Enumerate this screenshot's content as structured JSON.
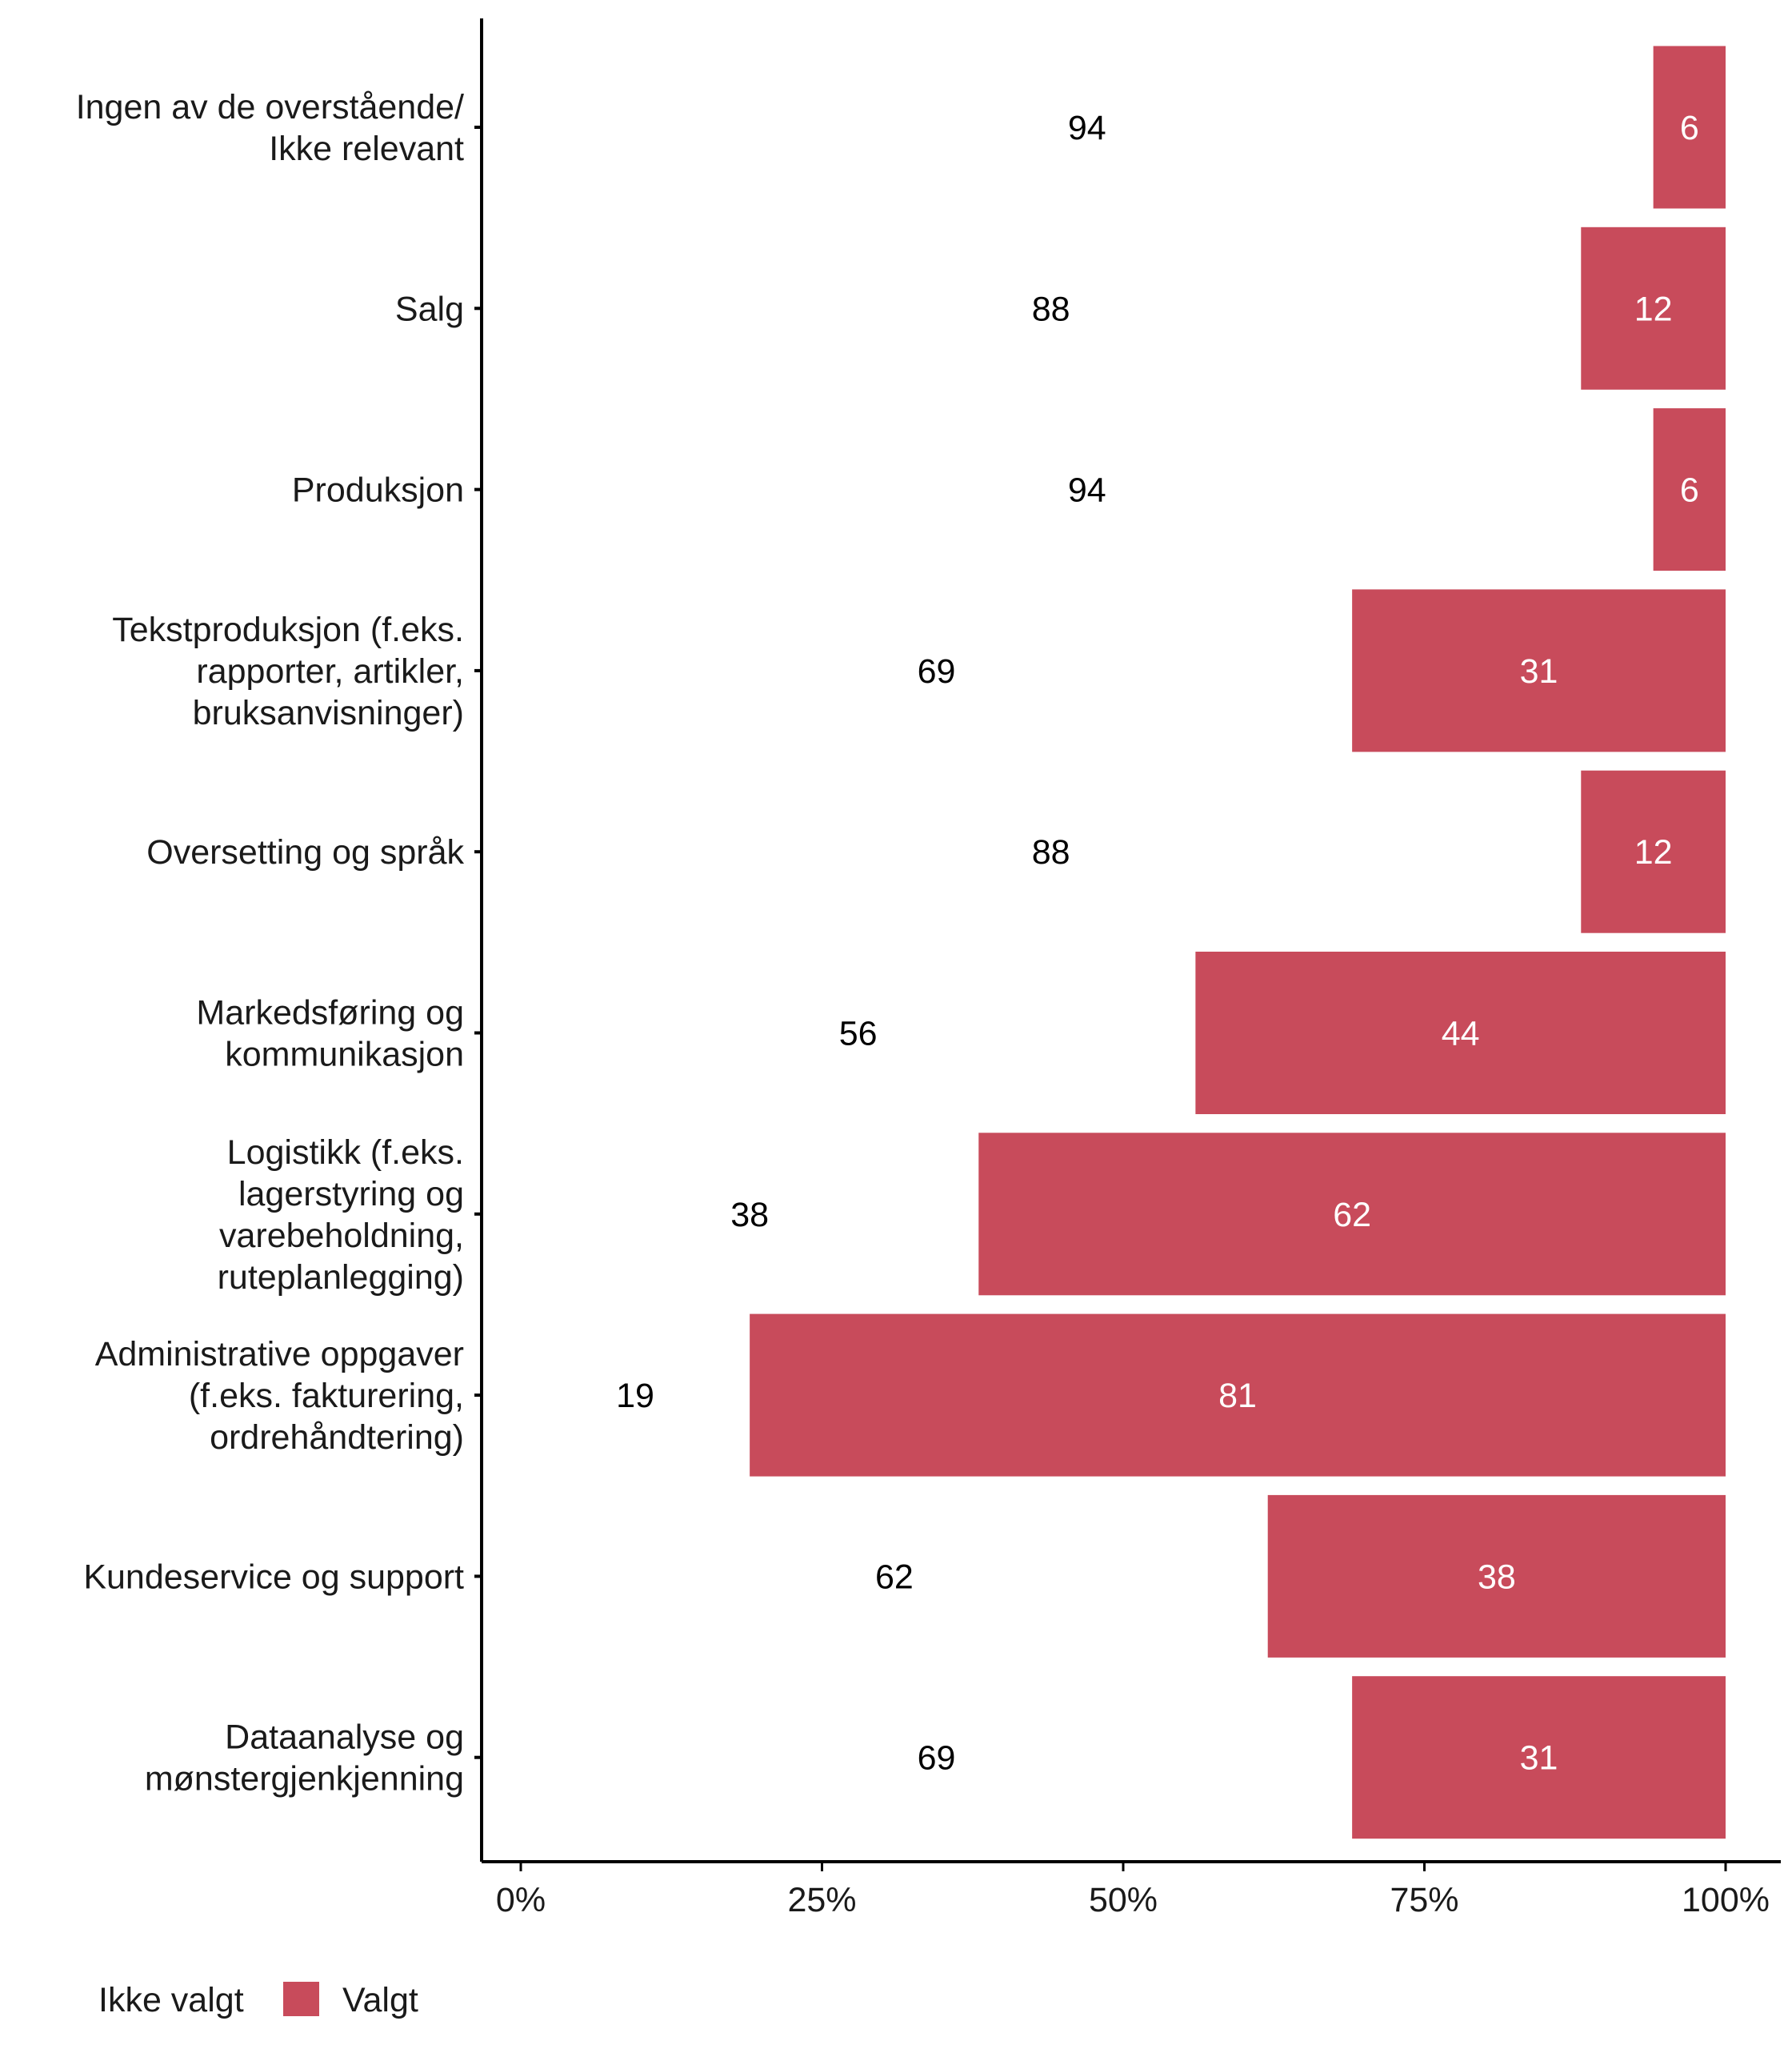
{
  "chart_data": {
    "type": "bar",
    "orientation": "horizontal",
    "stacked": true,
    "categories": [
      [
        "Ingen av de overstående/",
        "Ikke relevant"
      ],
      [
        "Salg"
      ],
      [
        "Produksjon"
      ],
      [
        "Tekstproduksjon (f.eks.",
        "rapporter, artikler,",
        "bruksanvisninger)"
      ],
      [
        "Oversetting og språk"
      ],
      [
        "Markedsføring og",
        "kommunikasjon"
      ],
      [
        "Logistikk (f.eks.",
        "lagerstyring og",
        "varebeholdning,",
        "ruteplanlegging)"
      ],
      [
        "Administrative oppgaver",
        "(f.eks. fakturering,",
        "ordrehåndtering)"
      ],
      [
        "Kundeservice og support"
      ],
      [
        "Dataanalyse og",
        "mønstergjenkjenning"
      ]
    ],
    "series": [
      {
        "name": "Ikke valgt",
        "values": [
          94,
          88,
          94,
          69,
          88,
          56,
          38,
          19,
          62,
          69
        ],
        "color": "#ffffff",
        "label_color": "#000000"
      },
      {
        "name": "Valgt",
        "values": [
          6,
          12,
          6,
          31,
          12,
          44,
          62,
          81,
          38,
          31
        ],
        "color": "#c84b5b",
        "label_color": "#ffffff"
      }
    ],
    "xlim": [
      0,
      100
    ],
    "xticks": [
      "0%",
      "25%",
      "50%",
      "75%",
      "100%"
    ],
    "xlabel": "",
    "ylabel": "",
    "grid": false,
    "legend_position": "bottom-left"
  }
}
